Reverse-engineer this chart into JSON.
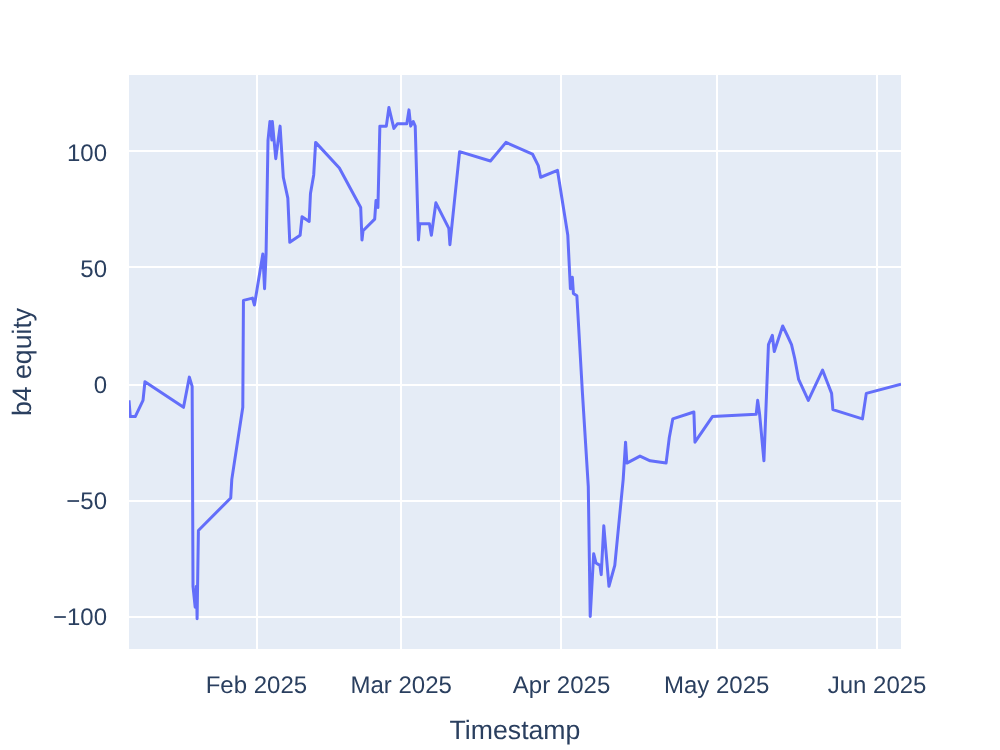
{
  "chart_data": {
    "type": "line",
    "xlabel": "Timestamp",
    "ylabel": "b4 equity",
    "x": [
      "2025-01-07T09:00",
      "2025-01-07T15:00",
      "2025-01-08T14:00",
      "2025-01-10T02:00",
      "2025-01-10T11:00",
      "2025-01-17T22:00",
      "2025-01-19T01:00",
      "2025-01-19T14:00",
      "2025-01-19T18:00",
      "2025-01-20T04:00",
      "2025-01-20T10:00",
      "2025-01-20T13:00",
      "2025-01-20T19:00",
      "2025-01-27T01:00",
      "2025-01-27T06:00",
      "2025-01-29T09:00",
      "2025-01-29T12:00",
      "2025-01-31T06:00",
      "2025-01-31T15:00",
      "2025-02-02T06:00",
      "2025-02-02T14:00",
      "2025-02-02T21:00",
      "2025-02-03T06:00",
      "2025-02-03T15:00",
      "2025-02-04T00:00",
      "2025-02-04T02:00",
      "2025-02-04T18:00",
      "2025-02-05T14:00",
      "2025-02-06T05:00",
      "2025-02-07T02:00",
      "2025-02-07T11:00",
      "2025-02-09T11:00",
      "2025-02-09T20:00",
      "2025-02-11T05:00",
      "2025-02-11T11:00",
      "2025-02-12T02:00",
      "2025-02-12T11:00",
      "2025-02-17T01:00",
      "2025-02-21T04:00",
      "2025-02-21T10:00",
      "2025-02-21T15:00",
      "2025-02-23T21:00",
      "2025-02-24T03:00",
      "2025-02-24T12:00",
      "2025-02-24T21:00",
      "2025-02-26T03:00",
      "2025-02-26T15:00",
      "2025-02-27T14:00",
      "2025-02-28T06:00",
      "2025-03-02T02:00",
      "2025-03-02T12:00",
      "2025-03-02T20:00",
      "2025-03-03T08:00",
      "2025-03-03T17:00",
      "2025-03-04T08:00",
      "2025-03-04T14:00",
      "2025-03-06T11:00",
      "2025-03-06T20:00",
      "2025-03-07T17:00",
      "2025-03-10T05:00",
      "2025-03-10T10:00",
      "2025-03-12T07:00",
      "2025-03-18T06:00",
      "2025-03-21T06:00",
      "2025-03-26T09:00",
      "2025-03-27T12:00",
      "2025-03-27T23:00",
      "2025-03-31T05:00",
      "2025-04-02T05:00",
      "2025-04-02T17:00",
      "2025-04-03T02:00",
      "2025-04-03T07:00",
      "2025-04-03T23:00",
      "2025-04-05T01:00",
      "2025-04-06T04:00",
      "2025-04-06T13:00",
      "2025-04-07T05:00",
      "2025-04-07T16:00",
      "2025-04-08T10:00",
      "2025-04-08T16:00",
      "2025-04-09T04:00",
      "2025-04-10T04:00",
      "2025-04-11T07:00",
      "2025-04-12T22:00",
      "2025-04-13T09:00",
      "2025-04-13T15:00",
      "2025-04-16T04:00",
      "2025-04-18T03:00",
      "2025-04-21T05:00",
      "2025-04-21T20:00",
      "2025-04-22T12:00",
      "2025-04-26T14:00",
      "2025-04-26T19:00",
      "2025-04-30T04:00",
      "2025-05-08T15:00",
      "2025-05-08T22:00",
      "2025-05-09T07:00",
      "2025-05-10T03:00",
      "2025-05-11T00:00",
      "2025-05-11T18:00",
      "2025-05-12T03:00",
      "2025-05-13T18:00",
      "2025-05-14T15:00",
      "2025-05-15T11:00",
      "2025-05-16T02:00",
      "2025-05-16T20:00",
      "2025-05-18T17:00",
      "2025-05-21T11:00",
      "2025-05-22T08:00",
      "2025-05-23T05:00",
      "2025-05-23T11:00",
      "2025-05-29T04:00",
      "2025-05-29T22:00",
      "2025-06-05T15:00"
    ],
    "series": [
      {
        "color": "#636efa",
        "values": [
          -7,
          -14,
          -14,
          -7,
          1,
          -10,
          3,
          -1,
          -87,
          -96,
          -87,
          -101,
          -63,
          -49,
          -41,
          -10,
          36,
          37,
          34,
          56,
          41,
          56,
          105,
          113,
          105,
          113,
          97,
          111,
          89,
          80,
          61,
          64,
          72,
          70,
          82,
          90,
          104,
          93,
          76,
          62,
          66,
          71,
          79,
          76,
          111,
          111,
          119,
          110,
          112,
          112,
          118,
          111,
          113,
          111,
          62,
          69,
          69,
          64,
          78,
          67,
          60,
          100,
          96,
          104,
          99,
          94,
          89,
          92,
          64,
          41,
          46,
          39,
          38,
          -4,
          -44,
          -100,
          -73,
          -77,
          -78,
          -82,
          -61,
          -87,
          -78,
          -41,
          -25,
          -34,
          -31,
          -33,
          -34,
          -23,
          -15,
          -12,
          -25,
          -14,
          -13,
          -7,
          -13,
          -33,
          17,
          21,
          14,
          25,
          21,
          17,
          11,
          2,
          -7,
          6,
          1,
          -4,
          -11,
          -15,
          -4,
          0
        ]
      }
    ],
    "xlim": [
      "2025-01-07T09:00",
      "2025-06-05T15:00"
    ],
    "xticks": [
      {
        "value": "2025-02-01",
        "label": "Feb 2025"
      },
      {
        "value": "2025-03-01",
        "label": "Mar 2025"
      },
      {
        "value": "2025-04-01",
        "label": "Apr 2025"
      },
      {
        "value": "2025-05-01",
        "label": "May 2025"
      },
      {
        "value": "2025-06-01",
        "label": "Jun 2025"
      }
    ],
    "ylim": [
      -114,
      133
    ],
    "yticks": [
      {
        "value": -100,
        "label": "−100"
      },
      {
        "value": -50,
        "label": "−50"
      },
      0,
      50,
      100
    ],
    "grid": true
  }
}
